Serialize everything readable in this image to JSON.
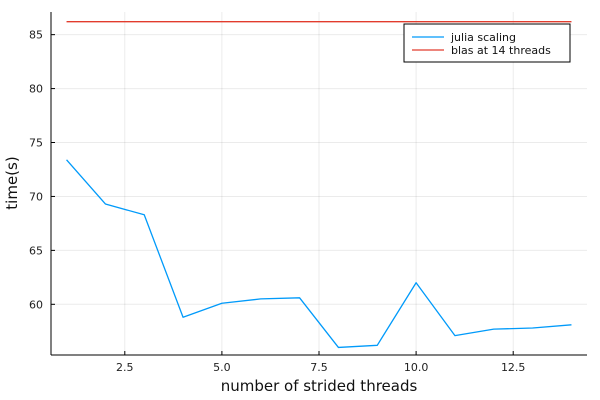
{
  "chart_data": {
    "type": "line",
    "xlabel": "number of strided threads",
    "ylabel": "time(s)",
    "xlim": [
      0.6,
      14.4
    ],
    "ylim": [
      55.3,
      87.1
    ],
    "x_ticks": [
      2.5,
      5.0,
      7.5,
      10.0,
      12.5
    ],
    "x_tick_labels": [
      "2.5",
      "5.0",
      "7.5",
      "10.0",
      "12.5"
    ],
    "y_ticks": [
      60,
      65,
      70,
      75,
      80,
      85
    ],
    "y_tick_labels": [
      "60",
      "65",
      "70",
      "75",
      "80",
      "85"
    ],
    "grid": true,
    "legend_position": "top-right",
    "series": [
      {
        "name": "julia scaling",
        "color": "#009AFA",
        "x": [
          1,
          2,
          3,
          4,
          5,
          6,
          7,
          8,
          9,
          10,
          11,
          12,
          13,
          14
        ],
        "values": [
          73.4,
          69.3,
          68.3,
          58.8,
          60.1,
          60.5,
          60.6,
          56.0,
          56.2,
          62.0,
          57.1,
          57.7,
          57.8,
          58.1
        ]
      },
      {
        "name": "blas at 14 threads",
        "color": "#E23C2D",
        "x": [
          1,
          14
        ],
        "values": [
          86.2,
          86.2
        ]
      }
    ]
  }
}
